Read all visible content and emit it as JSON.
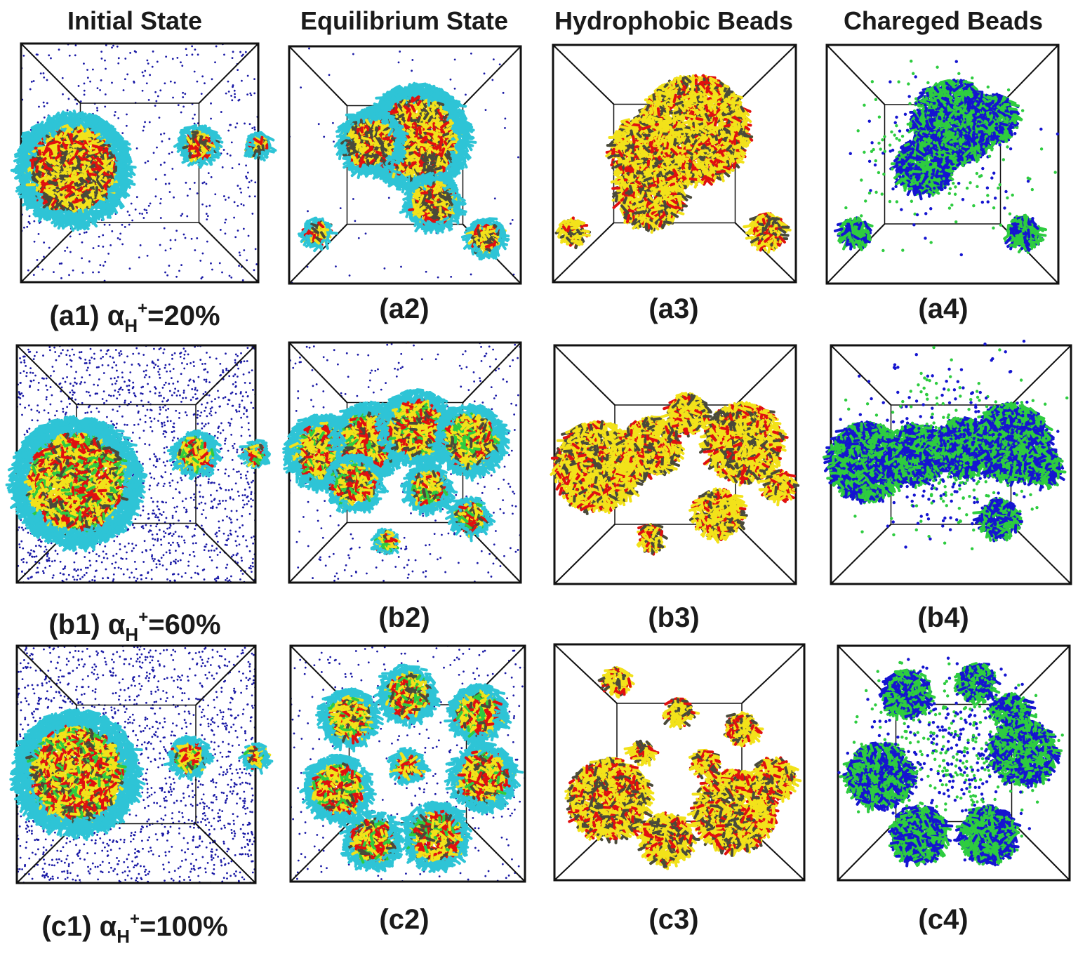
{
  "column_headers": [
    "Initial State",
    "Equilibrium State",
    "Hydrophobic Beads",
    "Chareged Beads"
  ],
  "rows": [
    {
      "panels": [
        {
          "label": "(a1)",
          "alpha_percent": "=20%",
          "type": "initial"
        },
        {
          "label": "(a2)",
          "type": "equilibrium"
        },
        {
          "label": "(a3)",
          "type": "hydrophobic"
        },
        {
          "label": "(a4)",
          "type": "charged"
        }
      ]
    },
    {
      "panels": [
        {
          "label": "(b1)",
          "alpha_percent": "=60%",
          "type": "initial"
        },
        {
          "label": "(b2)",
          "type": "equilibrium"
        },
        {
          "label": "(b3)",
          "type": "hydrophobic"
        },
        {
          "label": "(b4)",
          "type": "charged"
        }
      ]
    },
    {
      "panels": [
        {
          "label": "(c1)",
          "alpha_percent": "=100%",
          "type": "initial"
        },
        {
          "label": "(c2)",
          "type": "equilibrium"
        },
        {
          "label": "(c3)",
          "type": "hydrophobic"
        },
        {
          "label": "(c4)",
          "type": "charged"
        }
      ]
    }
  ],
  "alpha_symbol": "α",
  "alpha_subscript": "H",
  "alpha_superscript": "+",
  "colors": {
    "box_edge": "#111111",
    "ions": "#1a1aa6",
    "hydrophilic": "#2ec4d6",
    "hydrophobic_core": "#4a4a3a",
    "hydrophobic_yellow": "#f2e21a",
    "hydrophobic_red": "#e01010",
    "charged_green": "#2ecc40",
    "charged_blue": "#1515d0"
  }
}
